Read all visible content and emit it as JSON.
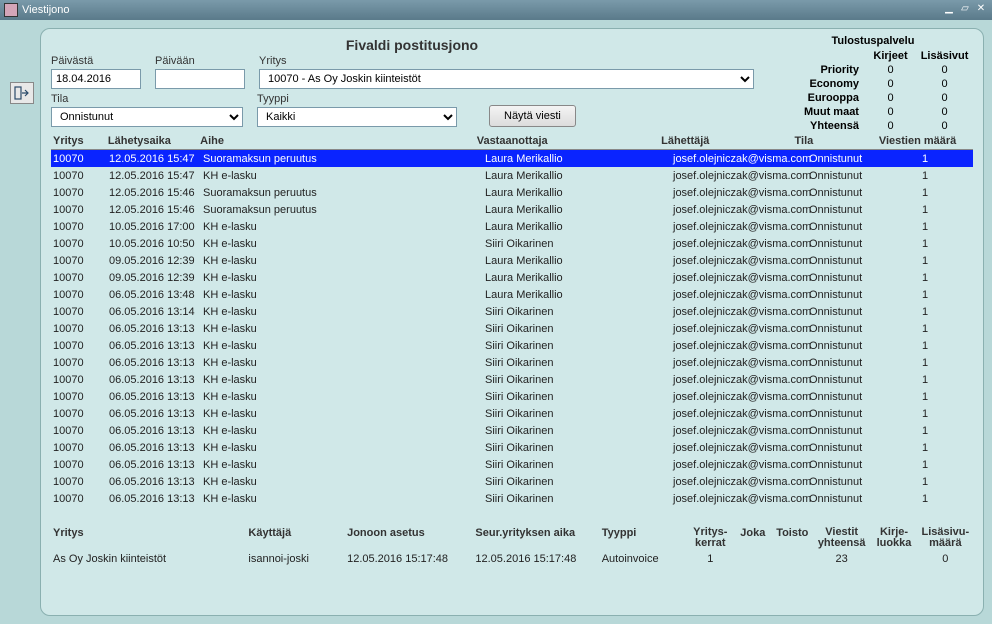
{
  "window": {
    "title": "Viestijono"
  },
  "header": {
    "title": "Fivaldi postitusjono"
  },
  "print_service": {
    "title": "Tulostuspalvelu",
    "col_kirjeet": "Kirjeet",
    "col_lisasivut": "Lisäsivut",
    "rows": [
      {
        "label": "Priority",
        "kirjeet": "0",
        "lisasivut": "0"
      },
      {
        "label": "Economy",
        "kirjeet": "0",
        "lisasivut": "0"
      },
      {
        "label": "Eurooppa",
        "kirjeet": "0",
        "lisasivut": "0"
      },
      {
        "label": "Muut maat",
        "kirjeet": "0",
        "lisasivut": "0"
      },
      {
        "label": "Yhteensä",
        "kirjeet": "0",
        "lisasivut": "0"
      }
    ]
  },
  "filters": {
    "paivasta_label": "Päivästä",
    "paivasta_value": "18.04.2016",
    "paivaan_label": "Päivään",
    "paivaan_value": "",
    "yritys_label": "Yritys",
    "yritys_value": "10070 - As Oy Joskin kiinteistöt",
    "tila_label": "Tila",
    "tila_value": "Onnistunut",
    "tyyppi_label": "Tyyppi",
    "tyyppi_value": "Kaikki",
    "nayta_viesti": "Näytä viesti"
  },
  "grid": {
    "headers": {
      "yritys": "Yritys",
      "lahetysaika": "Lähetysaika",
      "aihe": "Aihe",
      "vastaanottaja": "Vastaanottaja",
      "lahettaja": "Lähettäjä",
      "tila": "Tila",
      "viestien_maara": "Viestien määrä"
    },
    "rows": [
      {
        "yritys": "10070",
        "ts": "12.05.2016 15:47",
        "sub": "Suoramaksun peruutus",
        "rcp": "Laura Merikallio",
        "snd": "josef.olejniczak@visma.com",
        "tila": "Onnistunut",
        "cnt": "1",
        "sel": true
      },
      {
        "yritys": "10070",
        "ts": "12.05.2016 15:47",
        "sub": "KH e-lasku",
        "rcp": "Laura Merikallio",
        "snd": "josef.olejniczak@visma.com",
        "tila": "Onnistunut",
        "cnt": "1"
      },
      {
        "yritys": "10070",
        "ts": "12.05.2016 15:46",
        "sub": "Suoramaksun peruutus",
        "rcp": "Laura Merikallio",
        "snd": "josef.olejniczak@visma.com",
        "tila": "Onnistunut",
        "cnt": "1"
      },
      {
        "yritys": "10070",
        "ts": "12.05.2016 15:46",
        "sub": "Suoramaksun peruutus",
        "rcp": "Laura Merikallio",
        "snd": "josef.olejniczak@visma.com",
        "tila": "Onnistunut",
        "cnt": "1"
      },
      {
        "yritys": "10070",
        "ts": "10.05.2016 17:00",
        "sub": "KH e-lasku",
        "rcp": "Laura Merikallio",
        "snd": "josef.olejniczak@visma.com",
        "tila": "Onnistunut",
        "cnt": "1"
      },
      {
        "yritys": "10070",
        "ts": "10.05.2016 10:50",
        "sub": "KH e-lasku",
        "rcp": "Siiri Oikarinen",
        "snd": "josef.olejniczak@visma.com",
        "tila": "Onnistunut",
        "cnt": "1"
      },
      {
        "yritys": "10070",
        "ts": "09.05.2016 12:39",
        "sub": "KH e-lasku",
        "rcp": "Laura Merikallio",
        "snd": "josef.olejniczak@visma.com",
        "tila": "Onnistunut",
        "cnt": "1"
      },
      {
        "yritys": "10070",
        "ts": "09.05.2016 12:39",
        "sub": "KH e-lasku",
        "rcp": "Laura Merikallio",
        "snd": "josef.olejniczak@visma.com",
        "tila": "Onnistunut",
        "cnt": "1"
      },
      {
        "yritys": "10070",
        "ts": "06.05.2016 13:48",
        "sub": "KH e-lasku",
        "rcp": "Laura Merikallio",
        "snd": "josef.olejniczak@visma.com",
        "tila": "Onnistunut",
        "cnt": "1"
      },
      {
        "yritys": "10070",
        "ts": "06.05.2016 13:14",
        "sub": "KH e-lasku",
        "rcp": "Siiri Oikarinen",
        "snd": "josef.olejniczak@visma.com",
        "tila": "Onnistunut",
        "cnt": "1"
      },
      {
        "yritys": "10070",
        "ts": "06.05.2016 13:13",
        "sub": "KH e-lasku",
        "rcp": "Siiri Oikarinen",
        "snd": "josef.olejniczak@visma.com",
        "tila": "Onnistunut",
        "cnt": "1"
      },
      {
        "yritys": "10070",
        "ts": "06.05.2016 13:13",
        "sub": "KH e-lasku",
        "rcp": "Siiri Oikarinen",
        "snd": "josef.olejniczak@visma.com",
        "tila": "Onnistunut",
        "cnt": "1"
      },
      {
        "yritys": "10070",
        "ts": "06.05.2016 13:13",
        "sub": "KH e-lasku",
        "rcp": "Siiri Oikarinen",
        "snd": "josef.olejniczak@visma.com",
        "tila": "Onnistunut",
        "cnt": "1"
      },
      {
        "yritys": "10070",
        "ts": "06.05.2016 13:13",
        "sub": "KH e-lasku",
        "rcp": "Siiri Oikarinen",
        "snd": "josef.olejniczak@visma.com",
        "tila": "Onnistunut",
        "cnt": "1"
      },
      {
        "yritys": "10070",
        "ts": "06.05.2016 13:13",
        "sub": "KH e-lasku",
        "rcp": "Siiri Oikarinen",
        "snd": "josef.olejniczak@visma.com",
        "tila": "Onnistunut",
        "cnt": "1"
      },
      {
        "yritys": "10070",
        "ts": "06.05.2016 13:13",
        "sub": "KH e-lasku",
        "rcp": "Siiri Oikarinen",
        "snd": "josef.olejniczak@visma.com",
        "tila": "Onnistunut",
        "cnt": "1"
      },
      {
        "yritys": "10070",
        "ts": "06.05.2016 13:13",
        "sub": "KH e-lasku",
        "rcp": "Siiri Oikarinen",
        "snd": "josef.olejniczak@visma.com",
        "tila": "Onnistunut",
        "cnt": "1"
      },
      {
        "yritys": "10070",
        "ts": "06.05.2016 13:13",
        "sub": "KH e-lasku",
        "rcp": "Siiri Oikarinen",
        "snd": "josef.olejniczak@visma.com",
        "tila": "Onnistunut",
        "cnt": "1"
      },
      {
        "yritys": "10070",
        "ts": "06.05.2016 13:13",
        "sub": "KH e-lasku",
        "rcp": "Siiri Oikarinen",
        "snd": "josef.olejniczak@visma.com",
        "tila": "Onnistunut",
        "cnt": "1"
      },
      {
        "yritys": "10070",
        "ts": "06.05.2016 13:13",
        "sub": "KH e-lasku",
        "rcp": "Siiri Oikarinen",
        "snd": "josef.olejniczak@visma.com",
        "tila": "Onnistunut",
        "cnt": "1"
      },
      {
        "yritys": "10070",
        "ts": "06.05.2016 13:13",
        "sub": "KH e-lasku",
        "rcp": "Siiri Oikarinen",
        "snd": "josef.olejniczak@visma.com",
        "tila": "Onnistunut",
        "cnt": "1"
      }
    ]
  },
  "summary": {
    "headers": {
      "yritys": "Yritys",
      "kayttaja": "Käyttäjä",
      "jonoon": "Jonoon asetus",
      "seur": "Seur.yrityksen aika",
      "tyyppi": "Tyyppi",
      "yrityskerrat": "Yritys-\nkerrat",
      "joka": "Joka",
      "toisto": "Toisto",
      "viestit_yht": "Viestit\nyhteensä",
      "kirje_luokka": "Kirje-\nluokka",
      "lisasivu_maara": "Lisäsivu-\nmäärä"
    },
    "row": {
      "yritys": "As Oy Joskin kiinteistöt",
      "kayttaja": "isannoi-joski",
      "jonoon": "12.05.2016 15:17:48",
      "seur": "12.05.2016 15:17:48",
      "tyyppi": "Autoinvoice",
      "yrityskerrat": "1",
      "joka": "",
      "toisto": "",
      "viestit_yht": "23",
      "kirje_luokka": "",
      "lisasivu_maara": "0"
    }
  }
}
